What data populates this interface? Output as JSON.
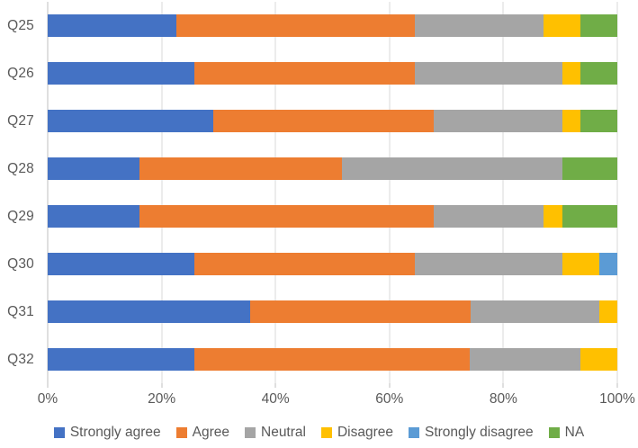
{
  "chart_data": {
    "type": "bar",
    "orientation": "horizontal",
    "stacked": true,
    "stacked_to_100_percent": true,
    "title": "",
    "xlabel": "",
    "ylabel": "",
    "categories": [
      "Q25",
      "Q26",
      "Q27",
      "Q28",
      "Q29",
      "Q30",
      "Q31",
      "Q32"
    ],
    "series": [
      {
        "name": "Strongly agree",
        "color": "#4472C4",
        "values": [
          22.6,
          25.8,
          29.0,
          16.1,
          16.1,
          25.8,
          35.5,
          25.8
        ]
      },
      {
        "name": "Agree",
        "color": "#ED7D31",
        "values": [
          41.9,
          38.7,
          38.7,
          35.5,
          51.6,
          38.7,
          38.7,
          48.4
        ]
      },
      {
        "name": "Neutral",
        "color": "#A5A5A5",
        "values": [
          22.6,
          25.8,
          22.6,
          38.7,
          19.4,
          25.8,
          22.6,
          19.4
        ]
      },
      {
        "name": "Disagree",
        "color": "#FFC000",
        "values": [
          6.5,
          3.2,
          3.2,
          0,
          3.2,
          6.5,
          3.2,
          6.5
        ]
      },
      {
        "name": "Strongly disagree",
        "color": "#5B9BD5",
        "values": [
          0,
          0,
          0,
          0,
          0,
          3.2,
          0,
          0
        ]
      },
      {
        "name": "NA",
        "color": "#70AD47",
        "values": [
          6.5,
          6.5,
          6.5,
          9.7,
          9.7,
          0,
          0,
          0
        ]
      }
    ],
    "x_axis": {
      "tick_labels": [
        "0%",
        "20%",
        "40%",
        "60%",
        "80%",
        "100%"
      ],
      "min": 0,
      "max": 100
    },
    "legend": {
      "position": "bottom",
      "entries": [
        "Strongly agree",
        "Agree",
        "Neutral",
        "Disagree",
        "Strongly disagree",
        "NA"
      ]
    },
    "grid": "vertical-only"
  },
  "style_colors": {
    "axis_text": "#595959",
    "gridline": "#D9D9D9",
    "axis_line": "#BFBFBF",
    "tick_mark": "#BFBFBF",
    "background": "#FFFFFF"
  }
}
